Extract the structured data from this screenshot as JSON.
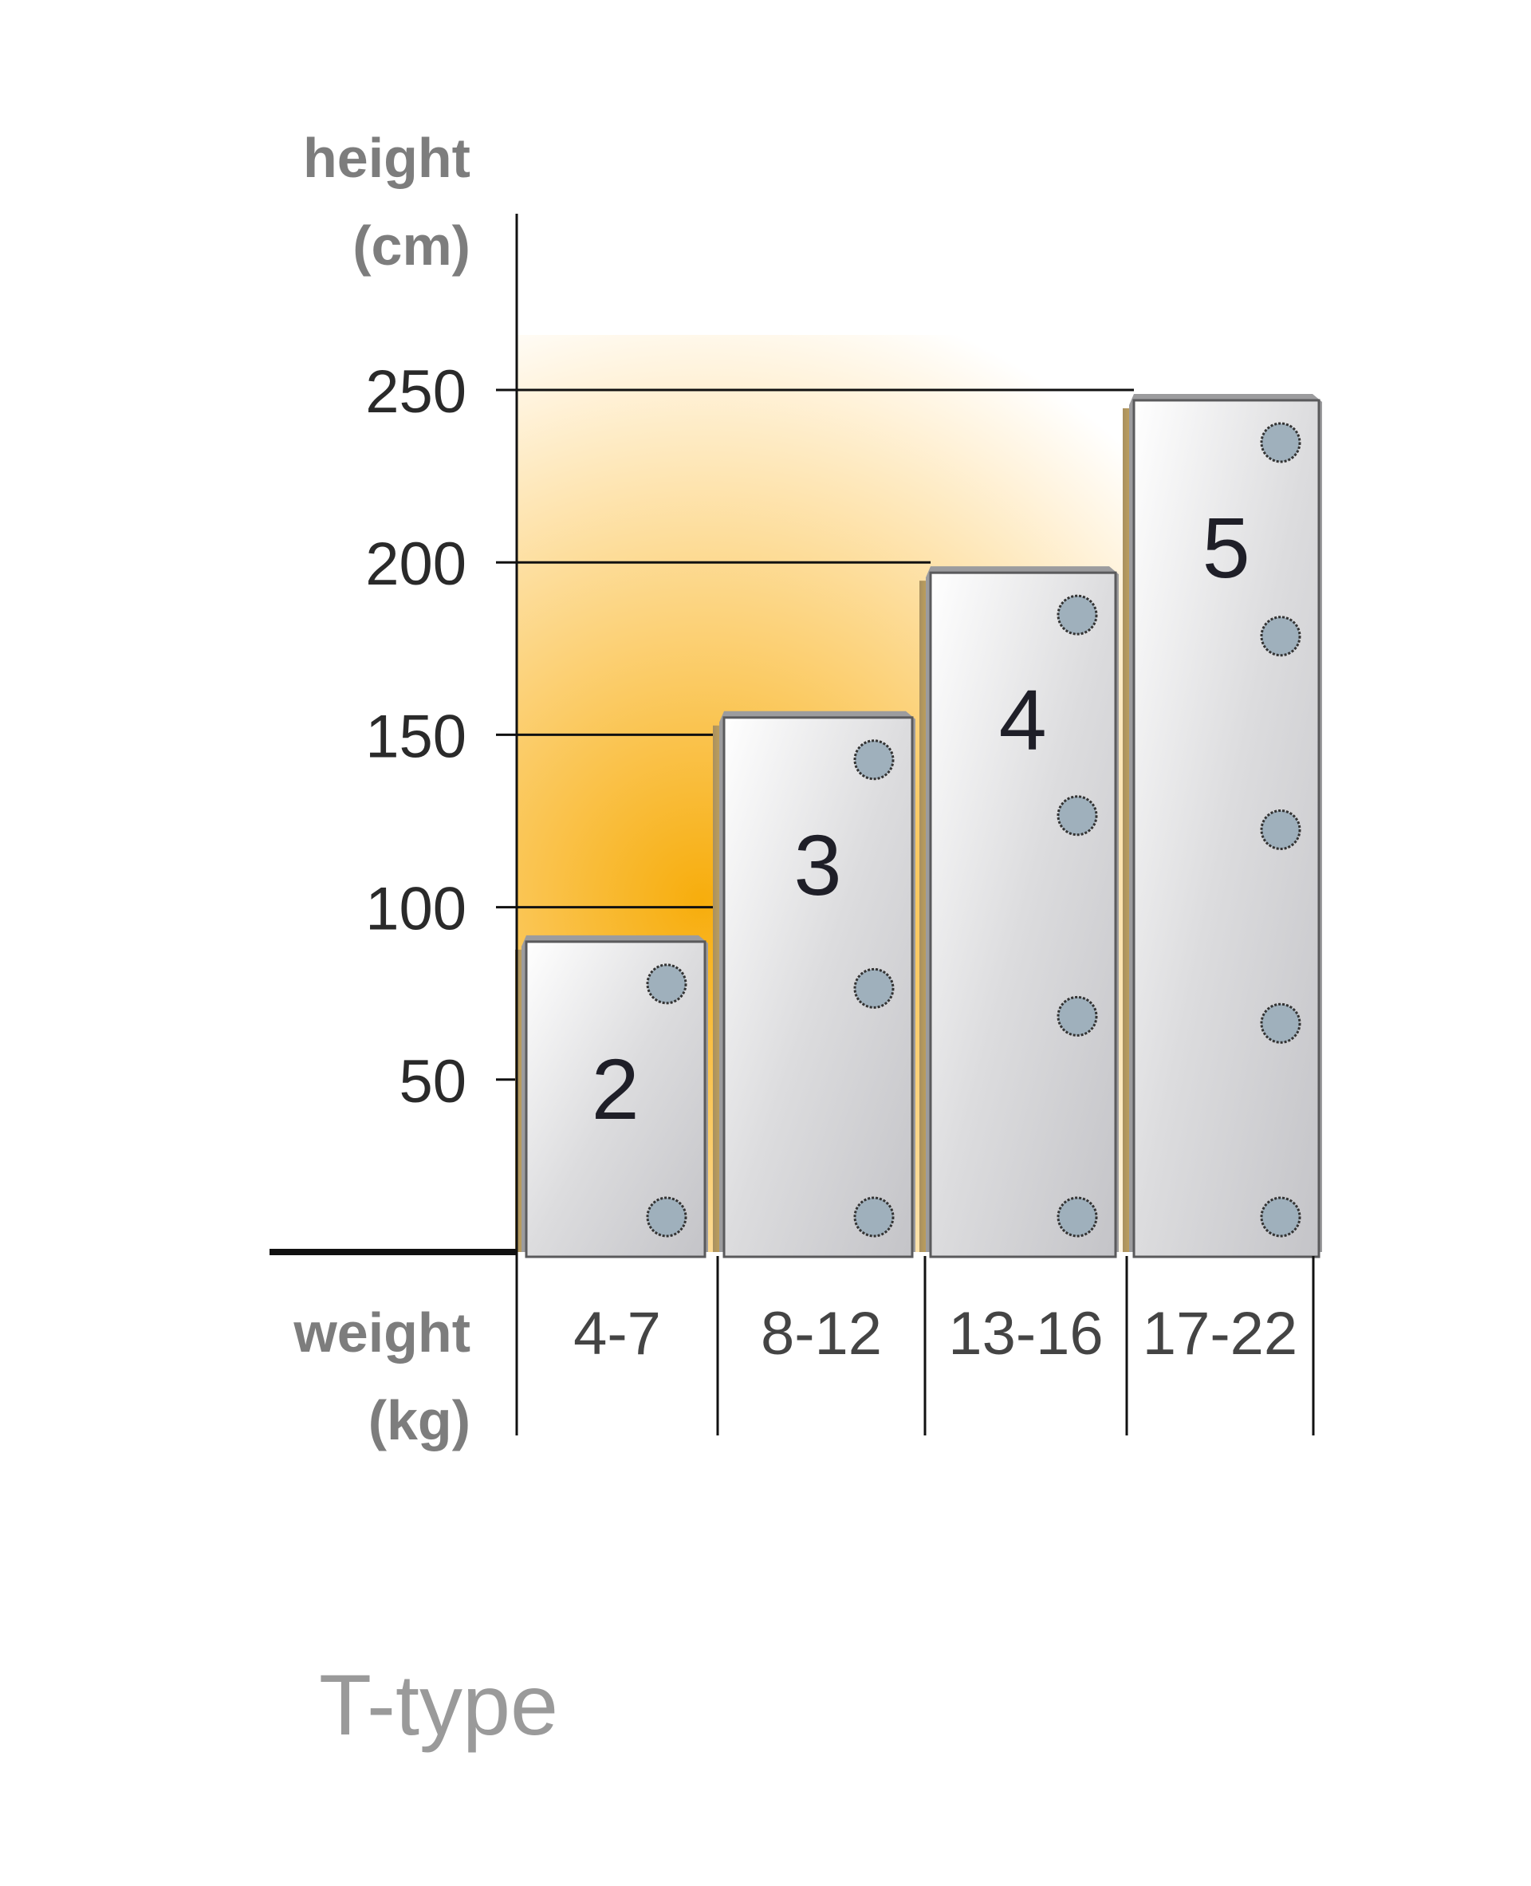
{
  "chart_data": {
    "type": "bar",
    "ylabel_line1": "height",
    "ylabel_line2": "(cm)",
    "xlabel_line1": "weight",
    "xlabel_line2": "(kg)",
    "categories": [
      "4-7",
      "8-12",
      "13-16",
      "17-22"
    ],
    "values": [
      90,
      155,
      197,
      247
    ],
    "bar_labels": [
      "2",
      "3",
      "4",
      "5"
    ],
    "dots_per_bar": [
      2,
      3,
      4,
      5
    ],
    "yticks": [
      50,
      100,
      150,
      200,
      250
    ],
    "ylim": [
      0,
      250
    ],
    "grid": true,
    "colors": {
      "highlight": "#f7b21a",
      "bar": "#d4d4d6",
      "dot": "#9fb0bc",
      "axis": "#111111"
    }
  },
  "caption": "T-type"
}
